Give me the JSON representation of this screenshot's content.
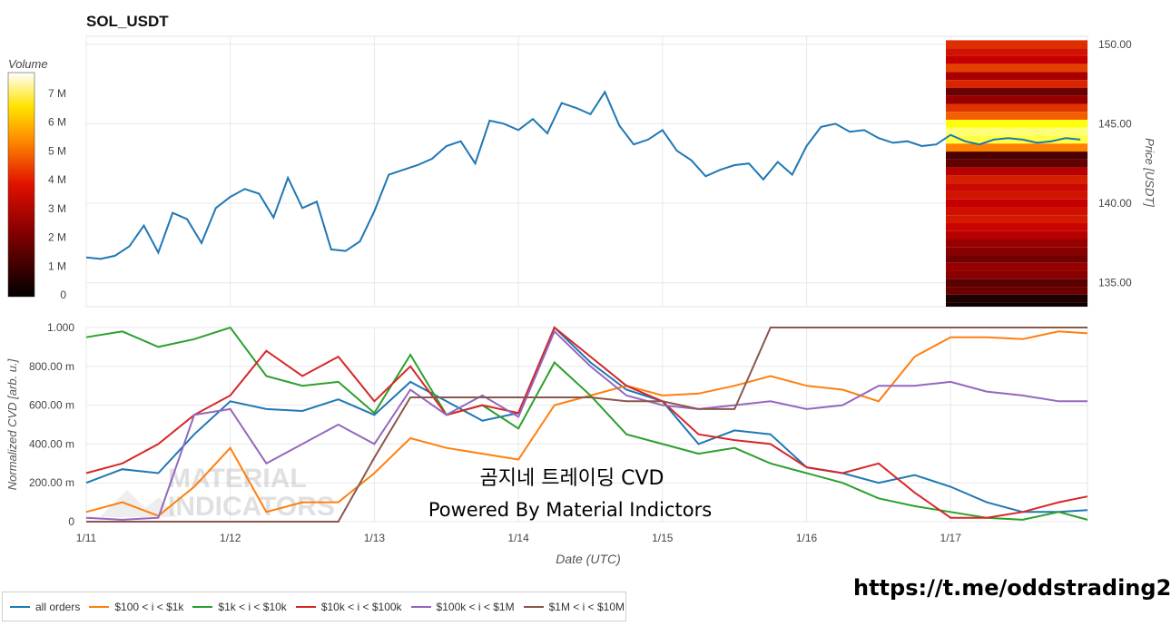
{
  "header": {
    "title": "SOL_USDT"
  },
  "watermark": {
    "overlay_title": "곰지네 트레이딩 CVD",
    "overlay_subtitle": "Powered By Material Indictors",
    "logo_text": [
      "MATERIAL",
      "INDICATORS"
    ]
  },
  "footer": {
    "link": "https://t.me/oddstrading2"
  },
  "colors": {
    "all_orders": "#1f77b4",
    "s100_1k": "#ff7f0e",
    "s1k_10k": "#2ca02c",
    "s10k_100k": "#d62728",
    "s100k_1m": "#9467bd",
    "s1m_10m": "#8c564b",
    "grid": "#e8e8e8"
  },
  "legend": [
    {
      "label": "all orders",
      "key": "all_orders"
    },
    {
      "label": "$100 < i < $1k",
      "key": "s100_1k"
    },
    {
      "label": "$1k < i < $10k",
      "key": "s1k_10k"
    },
    {
      "label": "$10k < i < $100k",
      "key": "s10k_100k"
    },
    {
      "label": "$100k < i < $1M",
      "key": "s100k_1m"
    },
    {
      "label": "$1M < i < $10M",
      "key": "s1m_10m"
    }
  ],
  "chart_data": [
    {
      "type": "line",
      "title": "SOL_USDT",
      "ylabel": "Price [USDT]",
      "ylim": [
        133.5,
        150.5
      ],
      "xlim": [
        0,
        6.95
      ],
      "yticks": [
        135,
        140,
        145,
        150
      ],
      "ytick_labels": [
        "135.00",
        "140.00",
        "145.00",
        "150.00"
      ],
      "series": [
        {
          "name": "price",
          "x": [
            0,
            0.1,
            0.2,
            0.3,
            0.4,
            0.5,
            0.6,
            0.7,
            0.8,
            0.9,
            1.0,
            1.1,
            1.2,
            1.3,
            1.4,
            1.5,
            1.6,
            1.7,
            1.8,
            1.9,
            2.0,
            2.1,
            2.2,
            2.3,
            2.4,
            2.5,
            2.6,
            2.7,
            2.8,
            2.9,
            3.0,
            3.1,
            3.2,
            3.3,
            3.4,
            3.5,
            3.6,
            3.7,
            3.8,
            3.9,
            4.0,
            4.1,
            4.2,
            4.3,
            4.4,
            4.5,
            4.6,
            4.7,
            4.8,
            4.9,
            5.0,
            5.1,
            5.2,
            5.3,
            5.4,
            5.5,
            5.6,
            5.7,
            5.8,
            5.9,
            6.0,
            6.1,
            6.2,
            6.3,
            6.4,
            6.5,
            6.6,
            6.7,
            6.8,
            6.9
          ],
          "y": [
            136.6,
            136.5,
            136.7,
            137.3,
            138.6,
            136.9,
            139.4,
            139.0,
            137.5,
            139.7,
            140.4,
            140.9,
            140.6,
            139.1,
            141.6,
            139.7,
            140.1,
            137.1,
            137.0,
            137.6,
            139.5,
            141.8,
            142.1,
            142.4,
            142.8,
            143.6,
            143.9,
            142.5,
            145.2,
            145.0,
            144.6,
            145.3,
            144.4,
            146.3,
            146.0,
            145.6,
            147.0,
            144.9,
            143.7,
            144.0,
            144.6,
            143.3,
            142.7,
            141.7,
            142.1,
            142.4,
            142.5,
            141.5,
            142.6,
            141.8,
            143.6,
            144.8,
            145.0,
            144.5,
            144.6,
            144.1,
            143.8,
            143.9,
            143.6,
            143.7,
            144.3,
            143.9,
            143.7,
            144.0,
            144.1,
            144.0,
            143.8,
            143.9,
            144.1,
            144.0
          ]
        }
      ],
      "heatmap": {
        "colorbar_label": "Volume",
        "colorbar_ticks": [
          "0",
          "1 M",
          "2 M",
          "3 M",
          "4 M",
          "5 M",
          "6 M",
          "7 M"
        ],
        "price_levels": [
          150,
          149.5,
          149,
          148.5,
          148,
          147.5,
          147,
          146.5,
          146,
          145.5,
          145,
          144.5,
          144,
          143.5,
          143,
          142.5,
          142,
          141.5,
          141,
          140.5,
          140,
          139.5,
          139,
          138.5,
          138,
          137.5,
          137,
          136.5,
          136,
          135.5,
          135,
          134.5,
          134,
          133.5
        ],
        "volume_millions": [
          3.5,
          3.0,
          2.6,
          3.8,
          2.2,
          3.3,
          1.4,
          2.0,
          3.6,
          4.4,
          6.8,
          7.2,
          7.0,
          5.0,
          1.0,
          1.3,
          2.4,
          3.2,
          2.8,
          3.0,
          2.6,
          2.9,
          3.1,
          2.7,
          2.4,
          2.0,
          1.8,
          1.5,
          2.0,
          1.8,
          1.2,
          1.4,
          0.4,
          0.2
        ]
      }
    },
    {
      "type": "line",
      "xlabel": "Date (UTC)",
      "ylabel": "Normalized CVD [arb. u.]",
      "ylim": [
        0,
        1.0
      ],
      "xlim": [
        0,
        6.95
      ],
      "xticks": [
        0,
        1,
        2,
        3,
        4,
        5,
        6
      ],
      "xtick_labels": [
        "1/11",
        "1/12",
        "1/13",
        "1/14",
        "1/15",
        "1/16",
        "1/17"
      ],
      "yticks": [
        0,
        0.2,
        0.4,
        0.6,
        0.8,
        1.0
      ],
      "ytick_labels": [
        "0",
        "200.00 m",
        "400.00 m",
        "600.00 m",
        "800.00 m",
        "1.000"
      ],
      "x": [
        0,
        0.25,
        0.5,
        0.75,
        1.0,
        1.25,
        1.5,
        1.75,
        2.0,
        2.25,
        2.5,
        2.75,
        3.0,
        3.25,
        3.5,
        3.75,
        4.0,
        4.25,
        4.5,
        4.75,
        5.0,
        5.25,
        5.5,
        5.75,
        6.0,
        6.25,
        6.5,
        6.75,
        6.95
      ],
      "series": [
        {
          "name": "all orders",
          "key": "all_orders",
          "values": [
            0.2,
            0.27,
            0.25,
            0.45,
            0.62,
            0.58,
            0.57,
            0.63,
            0.55,
            0.72,
            0.62,
            0.52,
            0.56,
            1.0,
            0.82,
            0.68,
            0.62,
            0.4,
            0.47,
            0.45,
            0.28,
            0.25,
            0.2,
            0.24,
            0.18,
            0.1,
            0.05,
            0.05,
            0.06
          ]
        },
        {
          "name": "$100 < i < $1k",
          "key": "s100_1k",
          "values": [
            0.05,
            0.1,
            0.03,
            0.18,
            0.38,
            0.05,
            0.1,
            0.1,
            0.25,
            0.43,
            0.38,
            0.35,
            0.32,
            0.6,
            0.65,
            0.7,
            0.65,
            0.66,
            0.7,
            0.75,
            0.7,
            0.68,
            0.62,
            0.85,
            0.95,
            0.95,
            0.94,
            0.98,
            0.97
          ]
        },
        {
          "name": "$1k < i < $10k",
          "key": "s1k_10k",
          "values": [
            0.95,
            0.98,
            0.9,
            0.94,
            1.0,
            0.75,
            0.7,
            0.72,
            0.56,
            0.86,
            0.55,
            0.6,
            0.48,
            0.82,
            0.65,
            0.45,
            0.4,
            0.35,
            0.38,
            0.3,
            0.25,
            0.2,
            0.12,
            0.08,
            0.05,
            0.02,
            0.01,
            0.05,
            0.01
          ]
        },
        {
          "name": "$10k < i < $100k",
          "key": "s10k_100k",
          "values": [
            0.25,
            0.3,
            0.4,
            0.55,
            0.65,
            0.88,
            0.75,
            0.85,
            0.62,
            0.8,
            0.55,
            0.6,
            0.56,
            1.0,
            0.85,
            0.7,
            0.62,
            0.45,
            0.42,
            0.4,
            0.28,
            0.25,
            0.3,
            0.15,
            0.02,
            0.02,
            0.05,
            0.1,
            0.13
          ]
        },
        {
          "name": "$100k < i < $1M",
          "key": "s100k_1m",
          "values": [
            0.02,
            0.01,
            0.02,
            0.55,
            0.58,
            0.3,
            0.4,
            0.5,
            0.4,
            0.68,
            0.55,
            0.65,
            0.54,
            0.98,
            0.8,
            0.65,
            0.6,
            0.58,
            0.6,
            0.62,
            0.58,
            0.6,
            0.7,
            0.7,
            0.72,
            0.67,
            0.65,
            0.62,
            0.62
          ]
        },
        {
          "name": "$1M < i < $10M",
          "key": "s1m_10m",
          "values": [
            0,
            0,
            0,
            0,
            0,
            0,
            0,
            0,
            0.33,
            0.64,
            0.64,
            0.64,
            0.64,
            0.64,
            0.64,
            0.62,
            0.62,
            0.58,
            0.58,
            1.0,
            1.0,
            1.0,
            1.0,
            1.0,
            1.0,
            1.0,
            1.0,
            1.0,
            1.0
          ]
        }
      ]
    }
  ]
}
